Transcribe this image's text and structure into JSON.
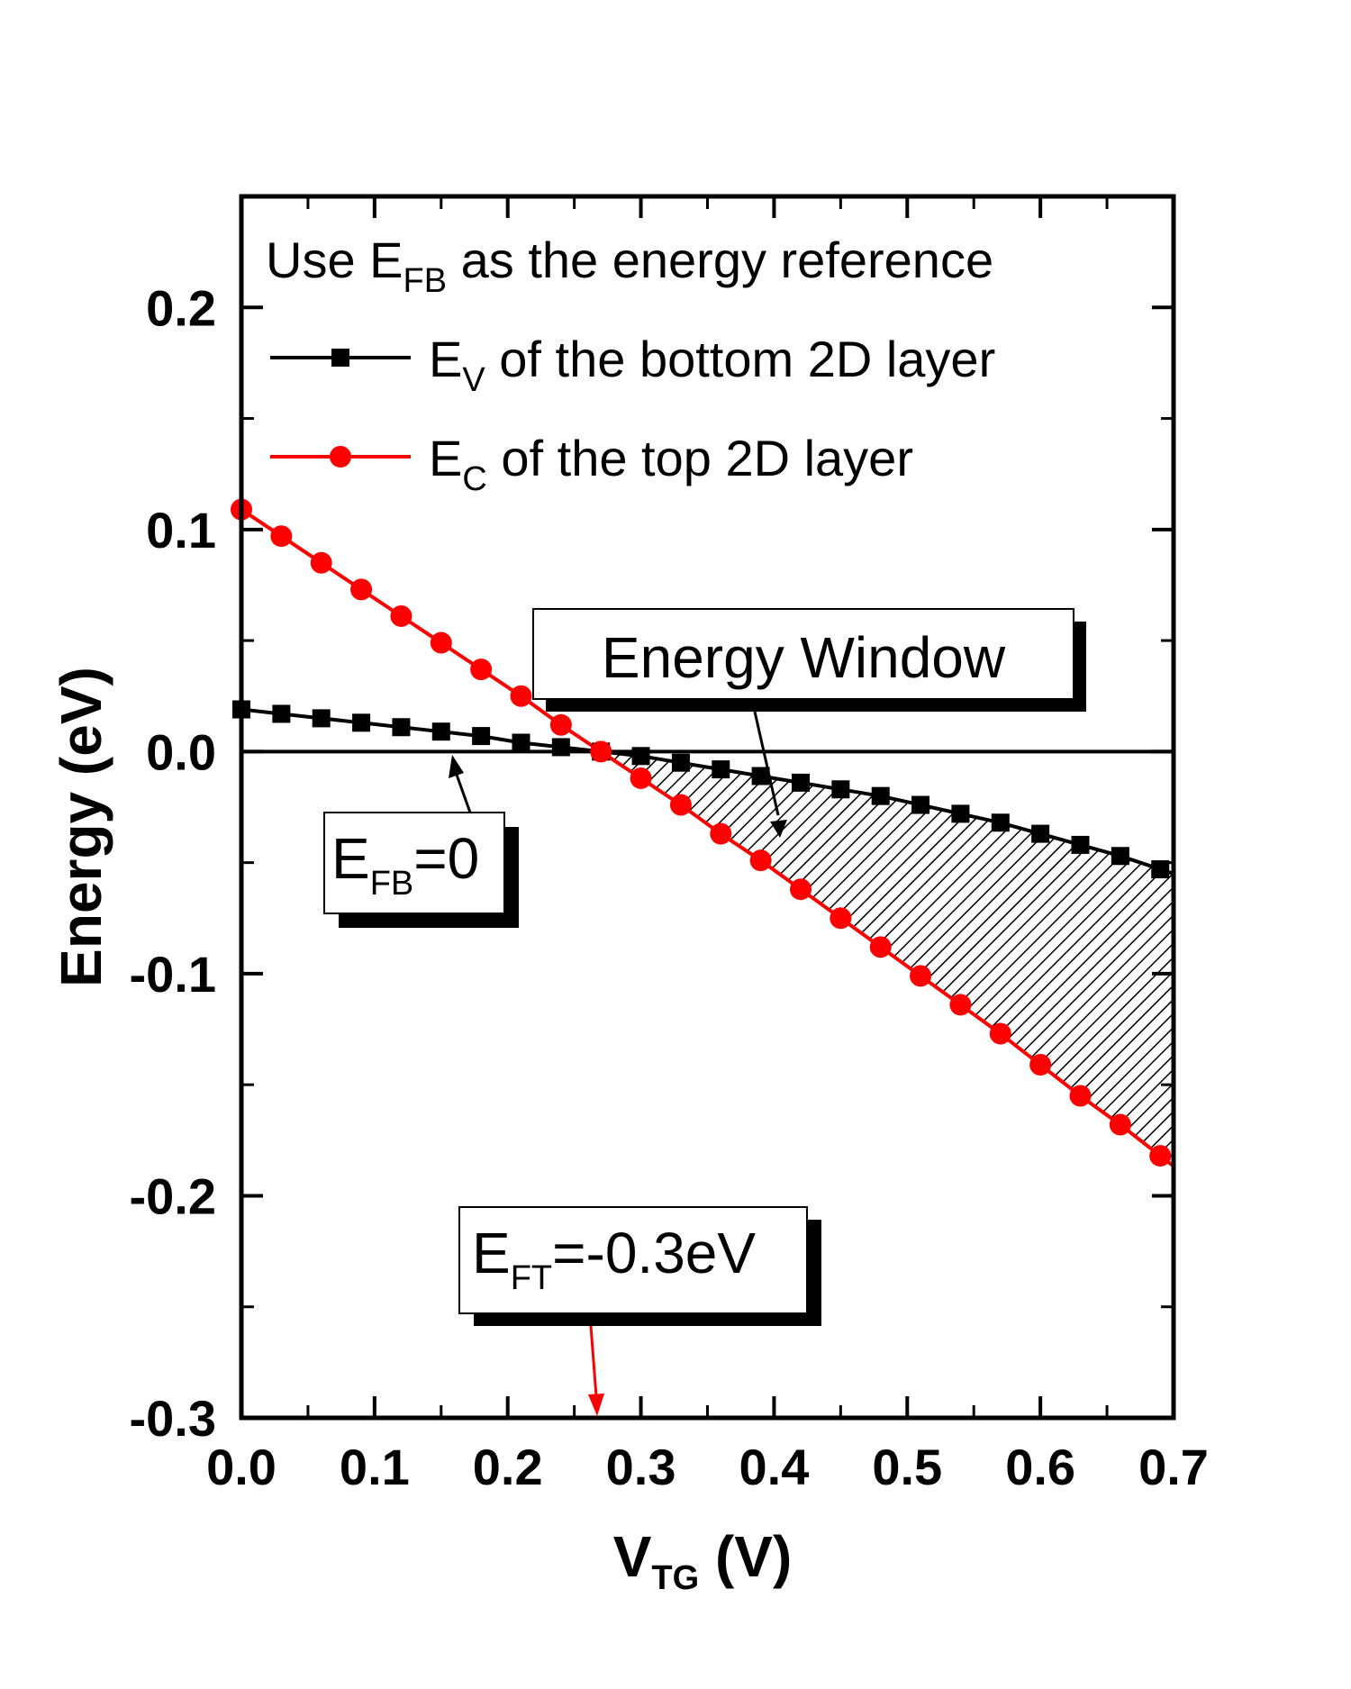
{
  "chart_data": {
    "type": "line",
    "title": "",
    "xlabel": {
      "main": "V",
      "sub": "TG",
      "rest": " (V)"
    },
    "ylabel": "Energy (eV)",
    "xlim": [
      0.0,
      0.7
    ],
    "ylim": [
      -0.3,
      0.25
    ],
    "xticks": [
      "0.0",
      "0.1",
      "0.2",
      "0.3",
      "0.4",
      "0.5",
      "0.6",
      "0.7"
    ],
    "yticks": [
      "-0.3",
      "-0.2",
      "-0.1",
      "0.0",
      "0.1",
      "0.2"
    ],
    "x": [
      0.0,
      0.03,
      0.06,
      0.09,
      0.12,
      0.15,
      0.18,
      0.21,
      0.24,
      0.27,
      0.3,
      0.33,
      0.36,
      0.39,
      0.42,
      0.45,
      0.48,
      0.51,
      0.54,
      0.57,
      0.6,
      0.63,
      0.66,
      0.69
    ],
    "series": [
      {
        "name": "E_V of the bottom 2D layer",
        "color": "#000000",
        "marker": "square",
        "values": [
          0.019,
          0.017,
          0.015,
          0.013,
          0.011,
          0.009,
          0.007,
          0.004,
          0.002,
          0.0,
          -0.002,
          -0.005,
          -0.008,
          -0.011,
          -0.014,
          -0.017,
          -0.02,
          -0.024,
          -0.028,
          -0.032,
          -0.037,
          -0.042,
          -0.047,
          -0.053
        ]
      },
      {
        "name": "E_C of the top 2D layer",
        "color": "#ff0000",
        "marker": "circle",
        "values": [
          0.109,
          0.097,
          0.085,
          0.073,
          0.061,
          0.049,
          0.037,
          0.025,
          0.012,
          0.0,
          -0.012,
          -0.024,
          -0.037,
          -0.049,
          -0.062,
          -0.075,
          -0.088,
          -0.101,
          -0.114,
          -0.127,
          -0.141,
          -0.155,
          -0.168,
          -0.182
        ]
      }
    ],
    "hlines": [
      {
        "y": 0.0,
        "color": "#000000",
        "label": "E_FB=0"
      },
      {
        "y": -0.3,
        "color": "#ff0000",
        "label": "E_FT=-0.3eV"
      }
    ],
    "shaded_region": {
      "label": "Energy Window",
      "between": [
        "E_C of the top 2D layer",
        "E_V of the bottom 2D layer"
      ],
      "x_from": 0.27,
      "x_to": 0.7,
      "pattern": "hatched"
    },
    "legend": {
      "position": "top",
      "header": {
        "pre": "Use E",
        "sub": "FB",
        "post": " as the energy reference"
      },
      "entries": [
        {
          "main": "E",
          "sub": "V",
          "post": " of the bottom 2D layer"
        },
        {
          "main": "E",
          "sub": "C",
          "post": " of the top 2D layer"
        }
      ]
    },
    "annotations": {
      "energy_window": "Energy Window",
      "efb": {
        "main": "E",
        "sub": "FB",
        "post": "=0"
      },
      "eft": {
        "main": "E",
        "sub": "FT",
        "post": "=-0.3eV"
      }
    }
  }
}
